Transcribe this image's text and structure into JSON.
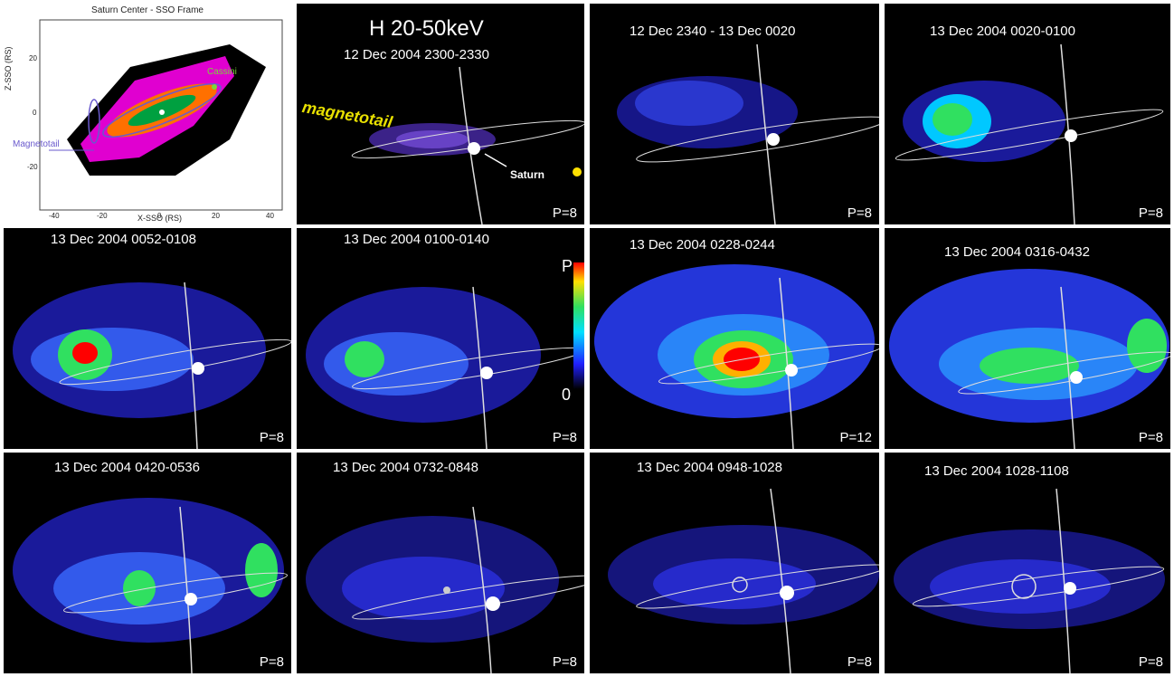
{
  "diagram": {
    "title": "Saturn Center - SSO Frame",
    "xlabel": "X-SSO (RS)",
    "ylabel": "Z-SSO (RS)",
    "x_ticks": [
      "-40",
      "-20",
      "0",
      "20",
      "40"
    ],
    "y_ticks": [
      "20",
      "0",
      "-20"
    ],
    "cassini_label": "Cassini",
    "magnetotail_label": "Magnetotail",
    "cassini_color": "#7bd63a",
    "magnetotail_color": "#6a5acd"
  },
  "header": {
    "energy": "H 20-50keV",
    "magnetotail": "magnetotail",
    "saturn": "Saturn",
    "scale_max": "P",
    "scale_min": "0"
  },
  "panels": [
    {
      "title": "12 Dec 2004    2300-2330",
      "p": "P=8"
    },
    {
      "title": "12 Dec   2340  - 13 Dec   0020",
      "p": "P=8"
    },
    {
      "title": "13 Dec 2004    0020-0100",
      "p": "P=8"
    },
    {
      "title": "13 Dec 2004    0052-0108",
      "p": "P=8"
    },
    {
      "title": "13 Dec 2004    0100-0140",
      "p": "P=8"
    },
    {
      "title": "13 Dec 2004     0228-0244",
      "p": "P=12"
    },
    {
      "title": "13 Dec 2004     0316-0432",
      "p": "P=8"
    },
    {
      "title": "13 Dec 2004 0420-0536",
      "p": "P=8"
    },
    {
      "title": "13 Dec 2004     0732-0848",
      "p": "P=8"
    },
    {
      "title": "13 Dec 2004     0948-1028",
      "p": "P=8"
    },
    {
      "title": "13 Dec 2004     1028-1108",
      "p": "P=8"
    }
  ],
  "colors": {
    "background": "#000000",
    "low": "#1a1aff",
    "mid": "#00c8ff",
    "high": "#ff0000",
    "magnetotail_text": "#e8e000"
  }
}
